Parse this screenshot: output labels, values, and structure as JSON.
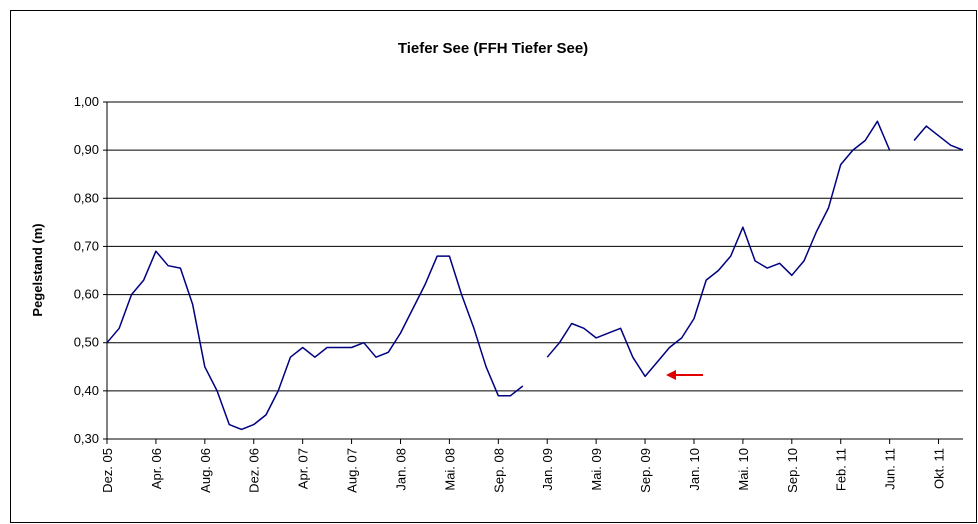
{
  "chart_data": {
    "type": "line",
    "title": "Tiefer See (FFH Tiefer See)",
    "y_label": "Pegelstand (m)",
    "categories": [
      "Dez. 05",
      null,
      null,
      null,
      "Apr. 06",
      null,
      null,
      null,
      "Aug. 06",
      null,
      null,
      null,
      "Dez. 06",
      null,
      null,
      null,
      "Apr. 07",
      null,
      null,
      null,
      "Aug. 07",
      null,
      null,
      null,
      "Jan. 08",
      null,
      null,
      null,
      "Mai. 08",
      null,
      null,
      null,
      "Sep. 08",
      null,
      null,
      null,
      "Jan. 09",
      null,
      null,
      null,
      "Mai. 09",
      null,
      null,
      null,
      "Sep. 09",
      null,
      null,
      null,
      "Jan. 10",
      null,
      null,
      null,
      "Mai. 10",
      null,
      null,
      null,
      "Sep. 10",
      null,
      null,
      null,
      "Feb. 11",
      null,
      null,
      null,
      "Jun. 11",
      null,
      null,
      null,
      "Okt. 11",
      null,
      null
    ],
    "values": [
      0.5,
      0.53,
      0.6,
      0.63,
      0.69,
      0.66,
      0.655,
      0.58,
      0.45,
      0.4,
      0.33,
      0.32,
      0.33,
      0.35,
      0.4,
      0.47,
      0.49,
      0.47,
      0.49,
      0.49,
      0.49,
      0.5,
      0.47,
      0.48,
      0.52,
      0.57,
      0.62,
      0.68,
      0.68,
      0.6,
      0.53,
      0.45,
      0.39,
      0.39,
      0.41,
      null,
      0.47,
      0.5,
      0.54,
      0.53,
      0.51,
      0.52,
      0.53,
      0.47,
      0.43,
      0.46,
      0.49,
      0.51,
      0.55,
      0.63,
      0.65,
      0.68,
      0.74,
      0.67,
      0.655,
      0.665,
      0.64,
      0.67,
      0.73,
      0.78,
      0.87,
      0.9,
      0.92,
      0.96,
      0.9,
      null,
      0.92,
      0.95,
      0.93,
      0.91,
      0.9
    ],
    "color": "#000080",
    "ylim": [
      0.3,
      1.0
    ],
    "yticks": [
      {
        "value": 0.3,
        "label": "0,30"
      },
      {
        "value": 0.4,
        "label": "0,40"
      },
      {
        "value": 0.5,
        "label": "0,50"
      },
      {
        "value": 0.6,
        "label": "0,60"
      },
      {
        "value": 0.7,
        "label": "0,70"
      },
      {
        "value": 0.8,
        "label": "0,80"
      },
      {
        "value": 0.9,
        "label": "0,90"
      },
      {
        "value": 1.0,
        "label": "1,00"
      }
    ],
    "grid": true
  }
}
